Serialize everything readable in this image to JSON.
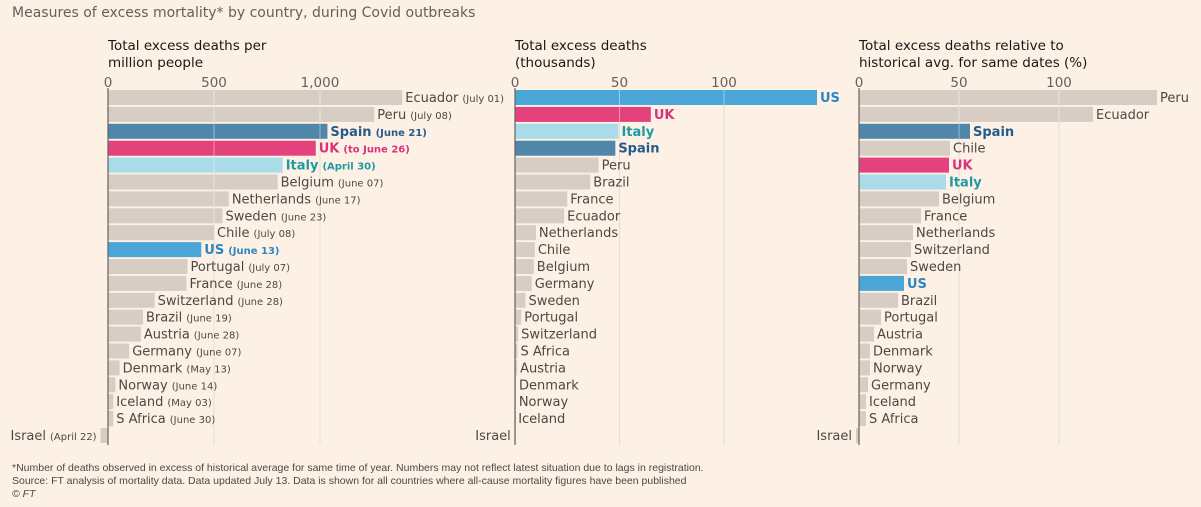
{
  "title": "Measures of excess mortality* by country, during Covid outbreaks",
  "colors": {
    "background": "#fdf1e6",
    "default_bar": "#d7cdc4",
    "Spain": "#4f86aa",
    "UK": "#e3427d",
    "Italy": "#a9dce8",
    "US": "#4aa6d6",
    "label_default": "#4d4845",
    "label_Spain": "#245c8a",
    "label_UK": "#d9347a",
    "label_Italy": "#1f9aa0",
    "label_US": "#2d86c2"
  },
  "chart_data": [
    {
      "type": "bar",
      "orientation": "horizontal",
      "title": "Total excess deaths per million people",
      "title_lines": [
        "Total excess deaths per",
        "million people"
      ],
      "xlim": [
        0,
        1400
      ],
      "ticks": [
        0,
        500,
        1000
      ],
      "tick_labels": [
        "0",
        "500",
        "1,000"
      ],
      "grid": true,
      "categories": [
        "Ecuador",
        "Peru",
        "Spain",
        "UK",
        "Italy",
        "Belgium",
        "Netherlands",
        "Sweden",
        "Chile",
        "US",
        "Portugal",
        "France",
        "Switzerland",
        "Brazil",
        "Austria",
        "Germany",
        "Denmark",
        "Norway",
        "Iceland",
        "S Africa",
        "Israel"
      ],
      "dates": [
        "(July 01)",
        "(July 08)",
        "(June 21)",
        "(to June 26)",
        "(April 30)",
        "(June 07)",
        "(June 17)",
        "(June 23)",
        "(July 08)",
        "(June 13)",
        "(July 07)",
        "(June 28)",
        "(June 28)",
        "(June 19)",
        "(June 28)",
        "(June 07)",
        "(May 13)",
        "(June 14)",
        "(May 03)",
        "(June 30)",
        "(April 22)"
      ],
      "values": [
        1388,
        1256,
        1035,
        980,
        824,
        800,
        570,
        540,
        500,
        440,
        375,
        370,
        220,
        165,
        155,
        100,
        55,
        35,
        25,
        25,
        -35
      ]
    },
    {
      "type": "bar",
      "orientation": "horizontal",
      "title": "Total excess deaths (thousands)",
      "title_lines": [
        "Total excess deaths",
        "(thousands)"
      ],
      "xlim": [
        0,
        150
      ],
      "ticks": [
        0,
        50,
        100
      ],
      "tick_labels": [
        "0",
        "50",
        "100"
      ],
      "grid": true,
      "categories": [
        "US",
        "UK",
        "Italy",
        "Spain",
        "Peru",
        "Brazil",
        "France",
        "Ecuador",
        "Netherlands",
        "Chile",
        "Belgium",
        "Germany",
        "Sweden",
        "Portugal",
        "Switzerland",
        "S Africa",
        "Austria",
        "Denmark",
        "Norway",
        "Iceland",
        "Israel"
      ],
      "values": [
        144.5,
        65,
        49.5,
        48,
        40,
        36,
        25,
        23.5,
        10,
        9.5,
        9,
        8,
        5,
        3,
        1.5,
        1.2,
        1,
        0.5,
        0.4,
        0.1,
        -0.1
      ]
    },
    {
      "type": "bar",
      "orientation": "horizontal",
      "title": "Total excess deaths relative to historical avg. for same dates (%)",
      "title_lines": [
        "Total excess deaths relative to",
        "historical avg. for same dates (%)"
      ],
      "xlim": [
        0,
        150
      ],
      "ticks": [
        0,
        50,
        100
      ],
      "tick_labels": [
        "0",
        "50",
        "100"
      ],
      "grid": true,
      "categories": [
        "Peru",
        "Ecuador",
        "Spain",
        "Chile",
        "UK",
        "Italy",
        "Belgium",
        "France",
        "Netherlands",
        "Switzerland",
        "Sweden",
        "US",
        "Brazil",
        "Portugal",
        "Austria",
        "Denmark",
        "Norway",
        "Germany",
        "Iceland",
        "S Africa",
        "Israel"
      ],
      "values": [
        149,
        117,
        55.5,
        45.5,
        45,
        43.5,
        40,
        31,
        27,
        26,
        24,
        22.5,
        19.5,
        11,
        7.5,
        5.5,
        5.5,
        4.5,
        3.5,
        3.5,
        -1.5
      ]
    }
  ],
  "footnote": {
    "line1": "*Number of deaths observed in excess of historical average for same time of year. Numbers may not reflect latest situation due to lags in registration.",
    "line2": "Source: FT analysis of mortality data. Data updated July 13. Data is shown for all countries where all-cause mortality figures have been published",
    "line3": "© FT"
  }
}
